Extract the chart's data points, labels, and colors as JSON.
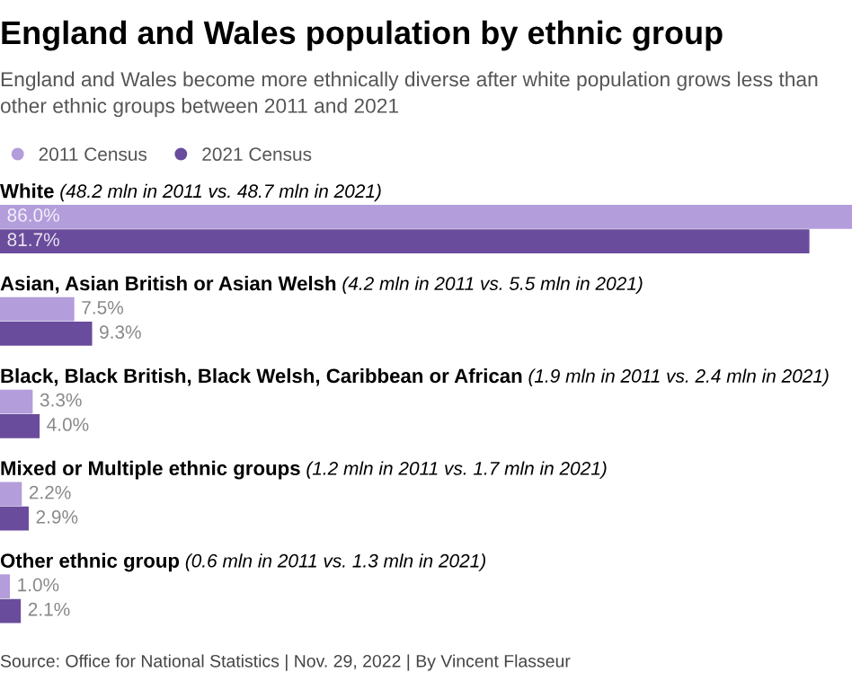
{
  "chart_data": {
    "type": "bar",
    "orientation": "horizontal",
    "title": "England and Wales population by ethnic group",
    "subtitle": "England and Wales become more ethnically diverse after white population grows less than other ethnic groups between 2011 and 2021",
    "categories": [
      "White (48.2 mln in 2011 vs. 48.7 mln in 2021)",
      "Asian, Asian British or Asian Welsh (4.2 mln in 2011 vs. 5.5 mln in 2021)",
      "Black, Black British, Black Welsh, Caribbean or African (1.9 mln in 2011 vs. 2.4 mln in 2021)",
      "Mixed or Multiple ethnic groups (1.2 mln in 2011 vs. 1.7 mln in 2021)",
      "Other ethnic group (0.6 mln in 2011 vs. 1.3 mln in 2021)"
    ],
    "series": [
      {
        "name": "2011 Census",
        "color": "#b39ddb",
        "values": [
          86.0,
          7.5,
          3.3,
          2.2,
          1.0
        ],
        "value_labels": [
          "86.0%",
          "7.5%",
          "3.3%",
          "2.2%",
          "1.0%"
        ]
      },
      {
        "name": "2021 Census",
        "color": "#6a4c9c",
        "values": [
          81.7,
          9.3,
          4.0,
          2.9,
          2.1
        ],
        "value_labels": [
          "81.7%",
          "9.3%",
          "4.0%",
          "2.9%",
          "2.1%"
        ]
      }
    ],
    "legend": "top left",
    "annotations": [
      "Source: Office for National Statistics | Nov. 29, 2022 | By Vincent Flasseur"
    ]
  }
}
